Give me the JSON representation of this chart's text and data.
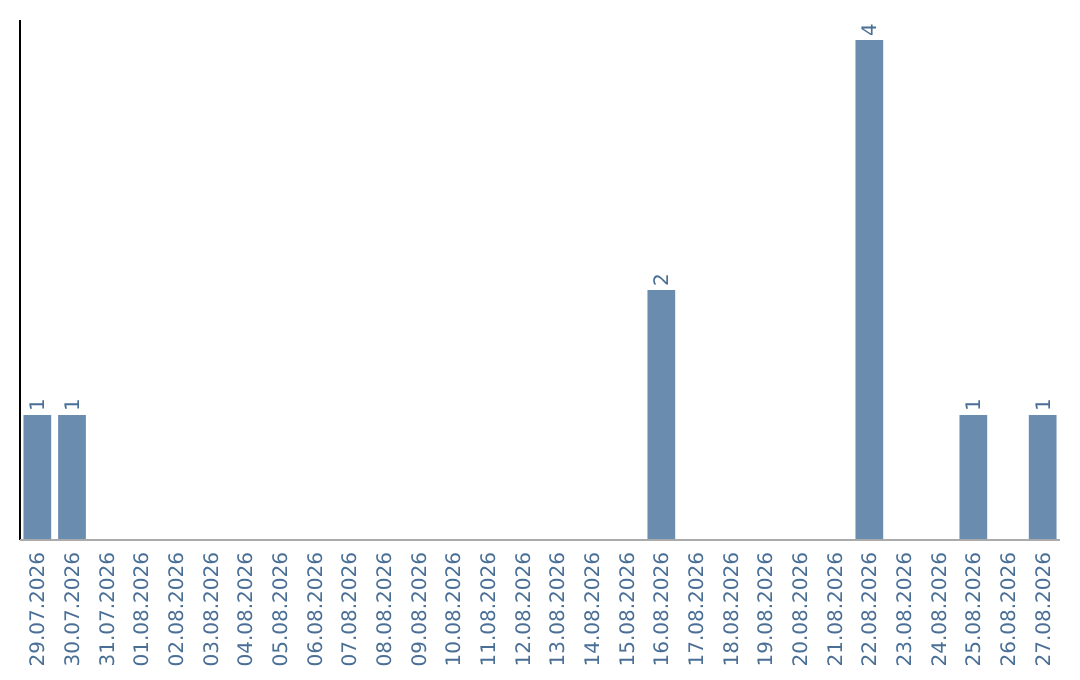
{
  "chart_data": {
    "type": "bar",
    "categories": [
      "29.07.2026",
      "30.07.2026",
      "31.07.2026",
      "01.08.2026",
      "02.08.2026",
      "03.08.2026",
      "04.08.2026",
      "05.08.2026",
      "06.08.2026",
      "07.08.2026",
      "08.08.2026",
      "09.08.2026",
      "10.08.2026",
      "11.08.2026",
      "12.08.2026",
      "13.08.2026",
      "14.08.2026",
      "15.08.2026",
      "16.08.2026",
      "17.08.2026",
      "18.08.2026",
      "19.08.2026",
      "20.08.2026",
      "21.08.2026",
      "22.08.2026",
      "23.08.2026",
      "24.08.2026",
      "25.08.2026",
      "26.08.2026",
      "27.08.2026"
    ],
    "values": [
      1,
      1,
      0,
      0,
      0,
      0,
      0,
      0,
      0,
      0,
      0,
      0,
      0,
      0,
      0,
      0,
      0,
      0,
      2,
      0,
      0,
      0,
      0,
      0,
      4,
      0,
      0,
      1,
      0,
      1
    ],
    "value_labels": [
      "1",
      "1",
      null,
      null,
      null,
      null,
      null,
      null,
      null,
      null,
      null,
      null,
      null,
      null,
      null,
      null,
      null,
      null,
      "2",
      null,
      null,
      null,
      null,
      null,
      "4",
      null,
      null,
      "1",
      null,
      "1"
    ],
    "color": "#6a8caf",
    "ylim": [
      0,
      4.16
    ],
    "tick_labels": "x"
  }
}
